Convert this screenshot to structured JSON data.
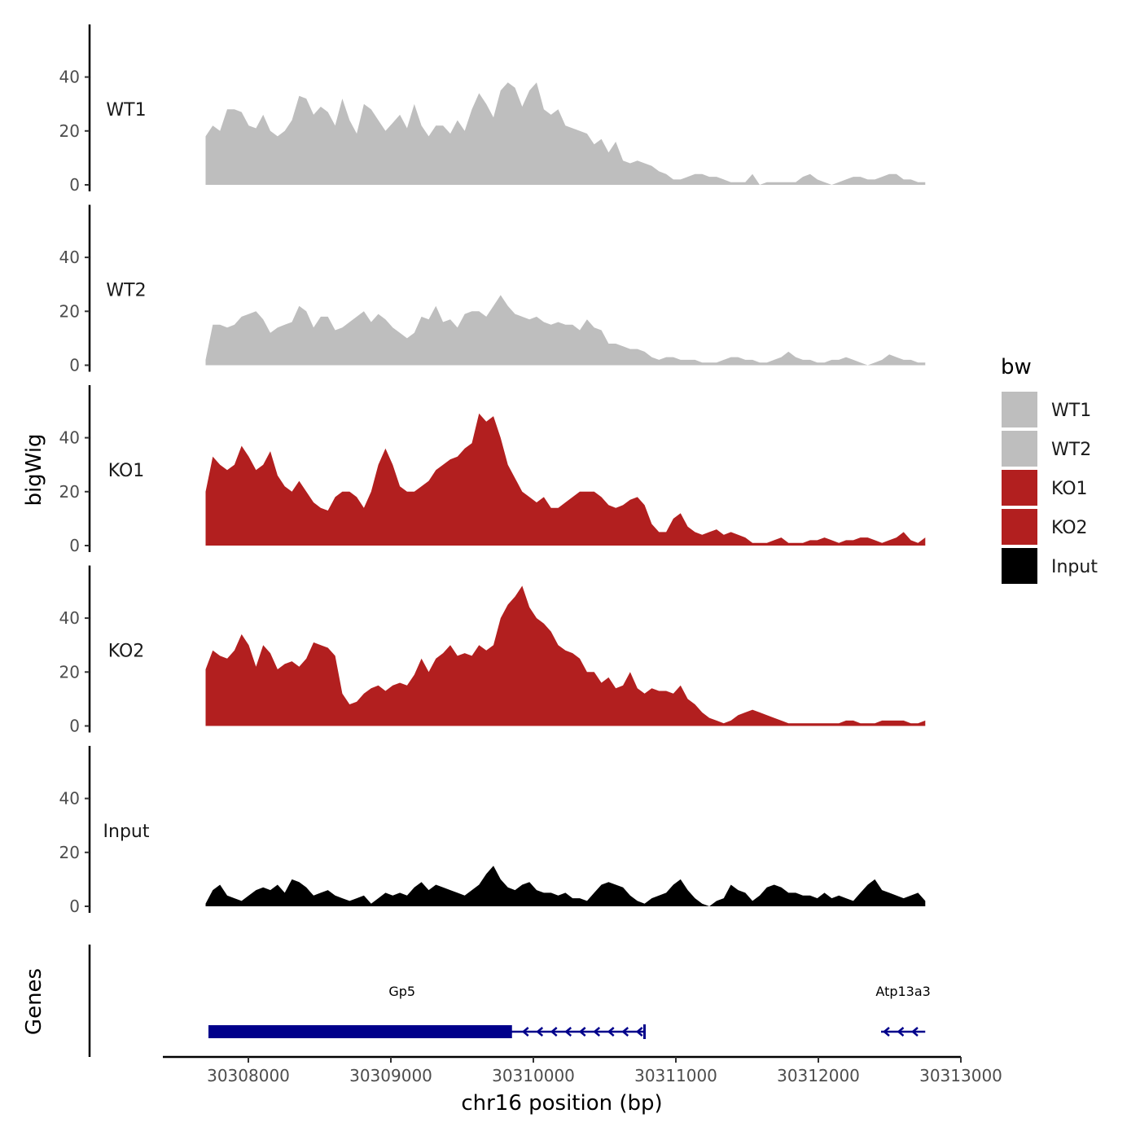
{
  "chart_data": {
    "type": "area",
    "ylabel": "bigWig",
    "xlabel": "chr16 position (bp)",
    "xlim": [
      30307400,
      30313000
    ],
    "ylim": [
      0,
      58
    ],
    "yticks": [
      0,
      20,
      40
    ],
    "xticks": [
      30308000,
      30309000,
      30310000,
      30311000,
      30312000,
      30313000
    ],
    "x_start": 30307700,
    "x_end": 30312750,
    "series": [
      {
        "name": "WT1",
        "color": "#bebebe",
        "values": [
          18,
          22,
          20,
          28,
          28,
          27,
          22,
          21,
          26,
          20,
          18,
          20,
          24,
          33,
          32,
          26,
          29,
          27,
          22,
          32,
          24,
          19,
          30,
          28,
          24,
          20,
          23,
          26,
          21,
          30,
          22,
          18,
          22,
          22,
          19,
          24,
          20,
          28,
          34,
          30,
          25,
          35,
          38,
          36,
          29,
          35,
          38,
          28,
          26,
          28,
          22,
          21,
          20,
          19,
          15,
          17,
          12,
          16,
          9,
          8,
          9,
          8,
          7,
          5,
          4,
          2,
          2,
          3,
          4,
          4,
          3,
          3,
          2,
          1,
          1,
          1,
          4,
          0,
          1,
          1,
          1,
          1,
          1,
          3,
          4,
          2,
          1,
          0,
          1,
          2,
          3,
          3,
          2,
          2,
          3,
          4,
          4,
          2,
          2,
          1,
          1
        ]
      },
      {
        "name": "WT2",
        "color": "#bebebe",
        "values": [
          2,
          15,
          15,
          14,
          15,
          18,
          19,
          20,
          17,
          12,
          14,
          15,
          16,
          22,
          20,
          14,
          18,
          18,
          13,
          14,
          16,
          18,
          20,
          16,
          19,
          17,
          14,
          12,
          10,
          12,
          18,
          17,
          22,
          16,
          17,
          14,
          19,
          20,
          20,
          18,
          22,
          26,
          22,
          19,
          18,
          17,
          18,
          16,
          15,
          16,
          15,
          15,
          13,
          17,
          14,
          13,
          8,
          8,
          7,
          6,
          6,
          5,
          3,
          2,
          3,
          3,
          2,
          2,
          2,
          1,
          1,
          1,
          2,
          3,
          3,
          2,
          2,
          1,
          1,
          2,
          3,
          5,
          3,
          2,
          2,
          1,
          1,
          2,
          2,
          3,
          2,
          1,
          0,
          1,
          2,
          4,
          3,
          2,
          2,
          1,
          1
        ]
      },
      {
        "name": "KO1",
        "color": "#b21f1f",
        "values": [
          20,
          33,
          30,
          28,
          30,
          37,
          33,
          28,
          30,
          35,
          26,
          22,
          20,
          24,
          20,
          16,
          14,
          13,
          18,
          20,
          20,
          18,
          14,
          20,
          30,
          36,
          30,
          22,
          20,
          20,
          22,
          24,
          28,
          30,
          32,
          33,
          36,
          38,
          49,
          46,
          48,
          40,
          30,
          25,
          20,
          18,
          16,
          18,
          14,
          14,
          16,
          18,
          20,
          20,
          20,
          18,
          15,
          14,
          15,
          17,
          18,
          15,
          8,
          5,
          5,
          10,
          12,
          7,
          5,
          4,
          5,
          6,
          4,
          5,
          4,
          3,
          1,
          1,
          1,
          2,
          3,
          1,
          1,
          1,
          2,
          2,
          3,
          2,
          1,
          2,
          2,
          3,
          3,
          2,
          1,
          2,
          3,
          5,
          2,
          1,
          3
        ]
      },
      {
        "name": "KO2",
        "color": "#b21f1f",
        "values": [
          21,
          28,
          26,
          25,
          28,
          34,
          30,
          22,
          30,
          27,
          21,
          23,
          24,
          22,
          25,
          31,
          30,
          29,
          26,
          12,
          8,
          9,
          12,
          14,
          15,
          13,
          15,
          16,
          15,
          19,
          25,
          20,
          25,
          27,
          30,
          26,
          27,
          26,
          30,
          28,
          30,
          40,
          45,
          48,
          52,
          44,
          40,
          38,
          35,
          30,
          28,
          27,
          25,
          20,
          20,
          16,
          18,
          14,
          15,
          20,
          14,
          12,
          14,
          13,
          13,
          12,
          15,
          10,
          8,
          5,
          3,
          2,
          1,
          2,
          4,
          5,
          6,
          5,
          4,
          3,
          2,
          1,
          1,
          1,
          1,
          1,
          1,
          1,
          1,
          2,
          2,
          1,
          1,
          1,
          2,
          2,
          2,
          2,
          1,
          1,
          2
        ]
      },
      {
        "name": "Input",
        "color": "#000000",
        "values": [
          1,
          6,
          8,
          4,
          3,
          2,
          4,
          6,
          7,
          6,
          8,
          5,
          10,
          9,
          7,
          4,
          5,
          6,
          4,
          3,
          2,
          3,
          4,
          1,
          3,
          5,
          4,
          5,
          4,
          7,
          9,
          6,
          8,
          7,
          6,
          5,
          4,
          6,
          8,
          12,
          15,
          10,
          7,
          6,
          8,
          9,
          6,
          5,
          5,
          4,
          5,
          3,
          3,
          2,
          5,
          8,
          9,
          8,
          7,
          4,
          2,
          1,
          3,
          4,
          5,
          8,
          10,
          6,
          3,
          1,
          0,
          2,
          3,
          8,
          6,
          5,
          2,
          4,
          7,
          8,
          7,
          5,
          5,
          4,
          4,
          3,
          5,
          3,
          4,
          3,
          2,
          5,
          8,
          10,
          6,
          5,
          4,
          3,
          4,
          5,
          2
        ]
      }
    ],
    "genes": [
      {
        "name": "Gp5",
        "start": 30307720,
        "end": 30310780,
        "strand": "-",
        "thick_start": 30307720,
        "thick_end": 30309850
      },
      {
        "name": "Atp13a3",
        "start": 30312440,
        "end": 30312750,
        "strand": "-"
      }
    ],
    "genes_label": "Genes",
    "legend": {
      "title": "bw",
      "position": "right",
      "entries": [
        {
          "label": "WT1",
          "color": "#bebebe"
        },
        {
          "label": "WT2",
          "color": "#bebebe"
        },
        {
          "label": "KO1",
          "color": "#b21f1f"
        },
        {
          "label": "KO2",
          "color": "#b21f1f"
        },
        {
          "label": "Input",
          "color": "#000000"
        }
      ]
    },
    "gene_color": "#00008b"
  }
}
